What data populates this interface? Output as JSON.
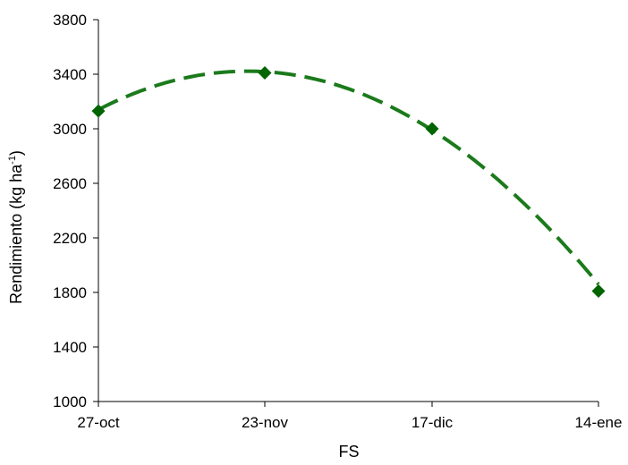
{
  "chart_data": {
    "type": "scatter",
    "title": "",
    "xlabel": "FS",
    "ylabel": {
      "text": "Rendimiento (kg ha",
      "superscript": "-1",
      "close": ")"
    },
    "categories": [
      "27-oct",
      "23-nov",
      "17-dic",
      "14-ene"
    ],
    "x_ticks": [
      "27-oct",
      "23-nov",
      "17-dic",
      "14-ene"
    ],
    "y_ticks": [
      1000,
      1400,
      1800,
      2200,
      2600,
      3000,
      3400,
      3800
    ],
    "ylim": [
      1000,
      3800
    ],
    "grid": false,
    "legend": "none",
    "series": [
      {
        "values": [
          3130,
          3410,
          3000,
          1810
        ],
        "marker": "diamond",
        "color": "#006400"
      }
    ],
    "trendline": {
      "kind": "polynomial-2",
      "style": "dashed",
      "color": "#1b7a1b",
      "fitted_values": [
        3140,
        3420,
        2990,
        1860
      ]
    }
  }
}
